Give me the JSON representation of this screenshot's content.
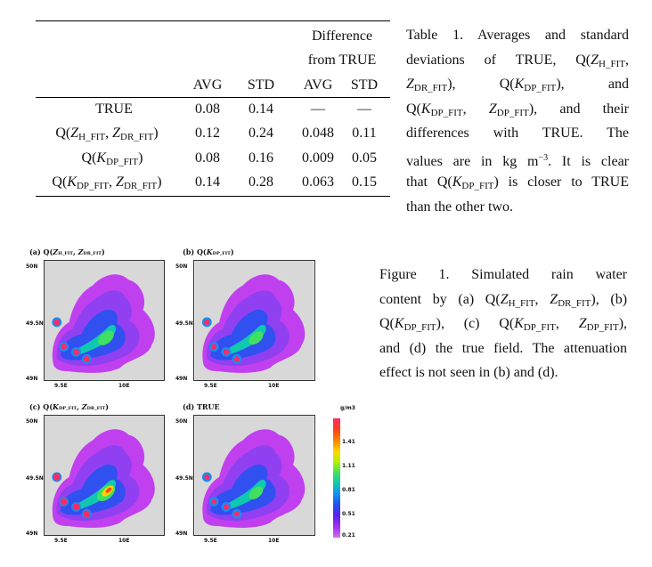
{
  "table": {
    "group_header_line1": "Difference",
    "group_header_line2": "from TRUE",
    "col_headers": [
      "AVG",
      "STD",
      "AVG",
      "STD"
    ],
    "rows": [
      {
        "label": "TRUE",
        "values": [
          "0.08",
          "0.14",
          "—",
          "—"
        ]
      },
      {
        "label": "Q(ZH_FIT, ZDR_FIT)",
        "values": [
          "0.12",
          "0.24",
          "0.048",
          "0.11"
        ]
      },
      {
        "label": "Q(KDP_FIT)",
        "values": [
          "0.08",
          "0.16",
          "0.009",
          "0.05"
        ]
      },
      {
        "label": "Q(KDP_FIT, ZDR_FIT)",
        "values": [
          "0.14",
          "0.28",
          "0.063",
          "0.15"
        ]
      }
    ]
  },
  "table_caption": [
    "Table 1. Averages and standard",
    "deviations of TRUE, Q(ZH_FIT,",
    "ZDR_FIT), Q(KDP_FIT), and",
    "Q(KDP_FIT, ZDP_FIT), and their",
    "differences with TRUE. The",
    "values are in kg m−3. It is clear",
    "that Q(KDP_FIT) is closer to TRUE",
    "than the other two."
  ],
  "figure_caption": [
    "Figure 1. Simulated rain water",
    "content by (a) Q(ZH_FIT, ZDR_FIT), (b)",
    "Q(KDP_FIT), (c) Q(KDP_FIT, ZDP_FIT),",
    "and (d) the true field. The attenuation",
    "effect is not seen in (b) and (d)."
  ],
  "panels": [
    {
      "title": "(a) Q(ZH_FIT, ZDR_FIT)",
      "intensity": 0.75
    },
    {
      "title": "(b) Q(KDP_FIT)",
      "intensity": 0.6
    },
    {
      "title": "(c) Q(KDP_FIT, ZDR_FIT)",
      "intensity": 1.0
    },
    {
      "title": "(d) TRUE",
      "intensity": 0.55
    }
  ],
  "axis_ticks": {
    "y": [
      "50N",
      "49.5N",
      "49N"
    ],
    "x": [
      "9.5E",
      "10E"
    ]
  },
  "colorbar": {
    "unit": "g/m3",
    "labels": [
      "1.41",
      "1.11",
      "0.81",
      "0.51",
      "0.21"
    ],
    "colors": [
      "#ff2a6a",
      "#ff4020",
      "#ff8000",
      "#ffd400",
      "#b8f000",
      "#40e060",
      "#10c8b0",
      "#1090f0",
      "#2050f0",
      "#6020f0",
      "#a030f0",
      "#d070f0"
    ]
  },
  "colors": {
    "panel_bg": "#d8d8d8",
    "rain_light": "#c040f0",
    "rain_blue": "#3050f0"
  }
}
